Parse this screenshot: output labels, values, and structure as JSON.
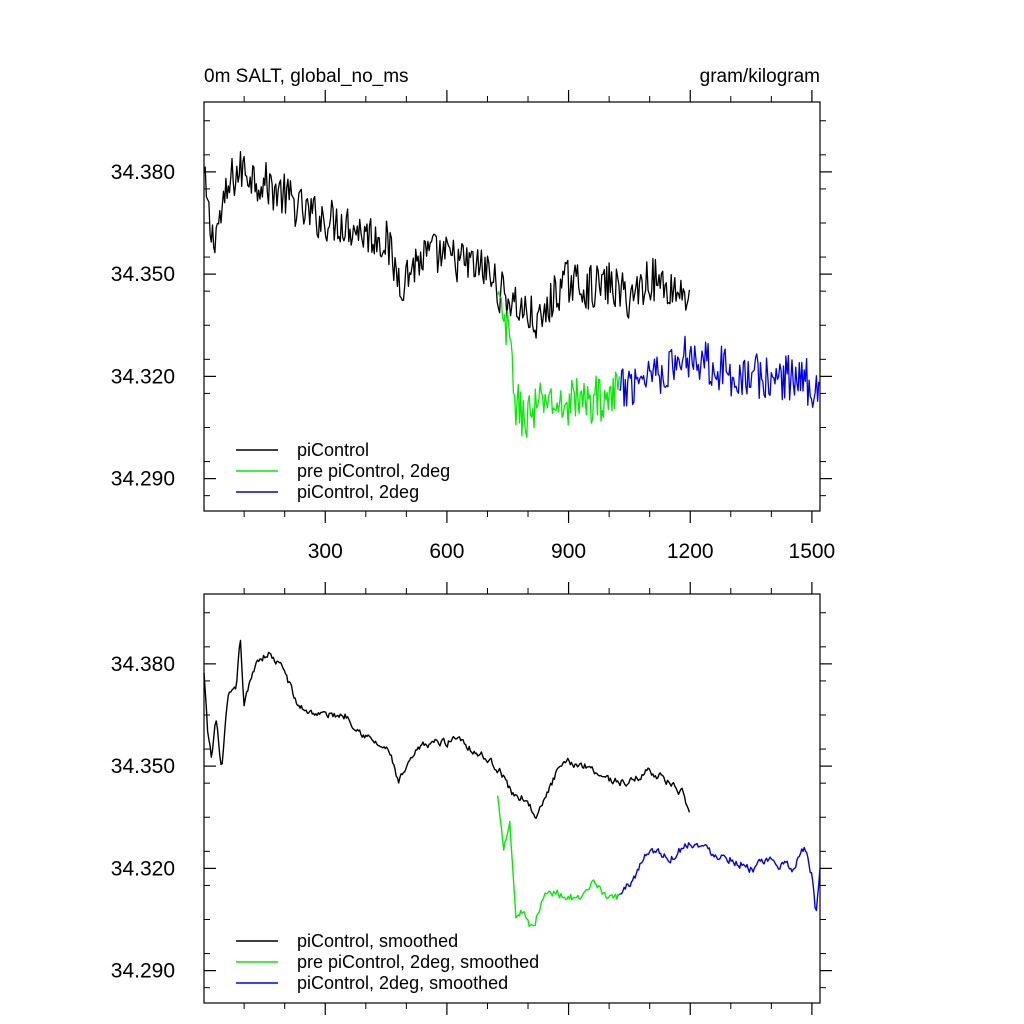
{
  "chart_data": [
    {
      "type": "line",
      "title_left": "0m SALT, global_no_ms",
      "title_right": "gram/kilogram",
      "xlabel": "",
      "ylabel": "",
      "xlim": [
        1,
        1520
      ],
      "ylim": [
        34.2805,
        34.4005
      ],
      "x_ticks": [
        300,
        600,
        900,
        1200,
        1500
      ],
      "y_ticks": [
        34.29,
        34.32,
        34.35,
        34.38
      ],
      "x_tick_labels": [
        "300",
        "600",
        "900",
        "1200",
        "1500"
      ],
      "y_tick_labels": [
        "34.290",
        "34.320",
        "34.350",
        "34.380"
      ],
      "legend_position": "bottom-left",
      "series": [
        {
          "name": "piControl",
          "color": "#000000",
          "x_start": 1,
          "x_end": 1200,
          "noise": 0.0065,
          "anchors": [
            [
              1,
              34.378
            ],
            [
              20,
              34.36
            ],
            [
              40,
              34.366
            ],
            [
              70,
              34.378
            ],
            [
              100,
              34.381
            ],
            [
              130,
              34.378
            ],
            [
              160,
              34.376
            ],
            [
              200,
              34.373
            ],
            [
              250,
              34.368
            ],
            [
              300,
              34.366
            ],
            [
              350,
              34.365
            ],
            [
              400,
              34.362
            ],
            [
              450,
              34.36
            ],
            [
              470,
              34.352
            ],
            [
              490,
              34.348
            ],
            [
              520,
              34.353
            ],
            [
              560,
              34.356
            ],
            [
              600,
              34.355
            ],
            [
              650,
              34.353
            ],
            [
              700,
              34.351
            ],
            [
              730,
              34.345
            ],
            [
              760,
              34.342
            ],
            [
              800,
              34.338
            ],
            [
              830,
              34.335
            ],
            [
              870,
              34.345
            ],
            [
              900,
              34.348
            ],
            [
              950,
              34.346
            ],
            [
              1000,
              34.347
            ],
            [
              1050,
              34.343
            ],
            [
              1100,
              34.349
            ],
            [
              1150,
              34.346
            ],
            [
              1200,
              34.344
            ]
          ]
        },
        {
          "name": "pre piControl, 2deg",
          "color": "#00ee00",
          "x_start": 725,
          "x_end": 1025,
          "noise": 0.007,
          "anchors": [
            [
              725,
              34.342
            ],
            [
              740,
              34.336
            ],
            [
              755,
              34.33
            ],
            [
              770,
              34.312
            ],
            [
              790,
              34.308
            ],
            [
              820,
              34.31
            ],
            [
              850,
              34.314
            ],
            [
              880,
              34.31
            ],
            [
              910,
              34.314
            ],
            [
              940,
              34.312
            ],
            [
              970,
              34.314
            ],
            [
              1000,
              34.313
            ],
            [
              1025,
              34.316
            ]
          ]
        },
        {
          "name": "piControl, 2deg",
          "color": "#0000ee",
          "x_start": 1025,
          "x_end": 1520,
          "noise": 0.007,
          "anchors": [
            [
              1025,
              34.314
            ],
            [
              1050,
              34.318
            ],
            [
              1100,
              34.322
            ],
            [
              1150,
              34.322
            ],
            [
              1200,
              34.327
            ],
            [
              1250,
              34.324
            ],
            [
              1300,
              34.321
            ],
            [
              1350,
              34.32
            ],
            [
              1400,
              34.319
            ],
            [
              1450,
              34.32
            ],
            [
              1500,
              34.318
            ],
            [
              1520,
              34.316
            ]
          ]
        }
      ]
    },
    {
      "type": "line",
      "xlabel": "",
      "ylabel": "",
      "xlim": [
        1,
        1520
      ],
      "ylim": [
        34.2805,
        34.4005
      ],
      "x_ticks": [
        300,
        600,
        900,
        1200,
        1500
      ],
      "y_ticks": [
        34.29,
        34.32,
        34.35,
        34.38
      ],
      "y_tick_labels": [
        "34.290",
        "34.320",
        "34.350",
        "34.380"
      ],
      "legend_position": "bottom-left",
      "series": [
        {
          "name": "piControl, smoothed",
          "color": "#000000",
          "x_start": 1,
          "x_end": 1200,
          "noise": 0.0022,
          "anchors": [
            [
              1,
              34.377
            ],
            [
              10,
              34.36
            ],
            [
              20,
              34.352
            ],
            [
              30,
              34.364
            ],
            [
              45,
              34.349
            ],
            [
              60,
              34.37
            ],
            [
              80,
              34.372
            ],
            [
              90,
              34.388
            ],
            [
              100,
              34.368
            ],
            [
              130,
              34.381
            ],
            [
              160,
              34.383
            ],
            [
              200,
              34.378
            ],
            [
              230,
              34.368
            ],
            [
              260,
              34.366
            ],
            [
              300,
              34.365
            ],
            [
              350,
              34.365
            ],
            [
              390,
              34.36
            ],
            [
              420,
              34.357
            ],
            [
              460,
              34.354
            ],
            [
              480,
              34.345
            ],
            [
              500,
              34.349
            ],
            [
              530,
              34.355
            ],
            [
              560,
              34.357
            ],
            [
              600,
              34.357
            ],
            [
              630,
              34.359
            ],
            [
              660,
              34.355
            ],
            [
              700,
              34.352
            ],
            [
              730,
              34.349
            ],
            [
              760,
              34.342
            ],
            [
              800,
              34.34
            ],
            [
              820,
              34.334
            ],
            [
              840,
              34.34
            ],
            [
              870,
              34.348
            ],
            [
              900,
              34.351
            ],
            [
              950,
              34.35
            ],
            [
              1000,
              34.346
            ],
            [
              1050,
              34.345
            ],
            [
              1100,
              34.349
            ],
            [
              1150,
              34.345
            ],
            [
              1180,
              34.342
            ],
            [
              1200,
              34.334
            ]
          ]
        },
        {
          "name": "pre piControl, 2deg, smoothed",
          "color": "#00ee00",
          "x_start": 725,
          "x_end": 1025,
          "noise": 0.0025,
          "anchors": [
            [
              725,
              34.341
            ],
            [
              740,
              34.327
            ],
            [
              755,
              34.334
            ],
            [
              770,
              34.306
            ],
            [
              790,
              34.308
            ],
            [
              810,
              34.302
            ],
            [
              840,
              34.312
            ],
            [
              870,
              34.313
            ],
            [
              900,
              34.312
            ],
            [
              930,
              34.31
            ],
            [
              960,
              34.315
            ],
            [
              990,
              34.313
            ],
            [
              1010,
              34.31
            ],
            [
              1025,
              34.312
            ]
          ]
        },
        {
          "name": "piControl, 2deg, smoothed",
          "color": "#0000ee",
          "x_start": 1025,
          "x_end": 1520,
          "noise": 0.0025,
          "anchors": [
            [
              1025,
              34.312
            ],
            [
              1060,
              34.317
            ],
            [
              1100,
              34.326
            ],
            [
              1150,
              34.323
            ],
            [
              1200,
              34.328
            ],
            [
              1250,
              34.325
            ],
            [
              1300,
              34.323
            ],
            [
              1350,
              34.32
            ],
            [
              1400,
              34.322
            ],
            [
              1450,
              34.32
            ],
            [
              1480,
              34.326
            ],
            [
              1500,
              34.318
            ],
            [
              1510,
              34.306
            ],
            [
              1520,
              34.32
            ]
          ]
        }
      ]
    }
  ]
}
